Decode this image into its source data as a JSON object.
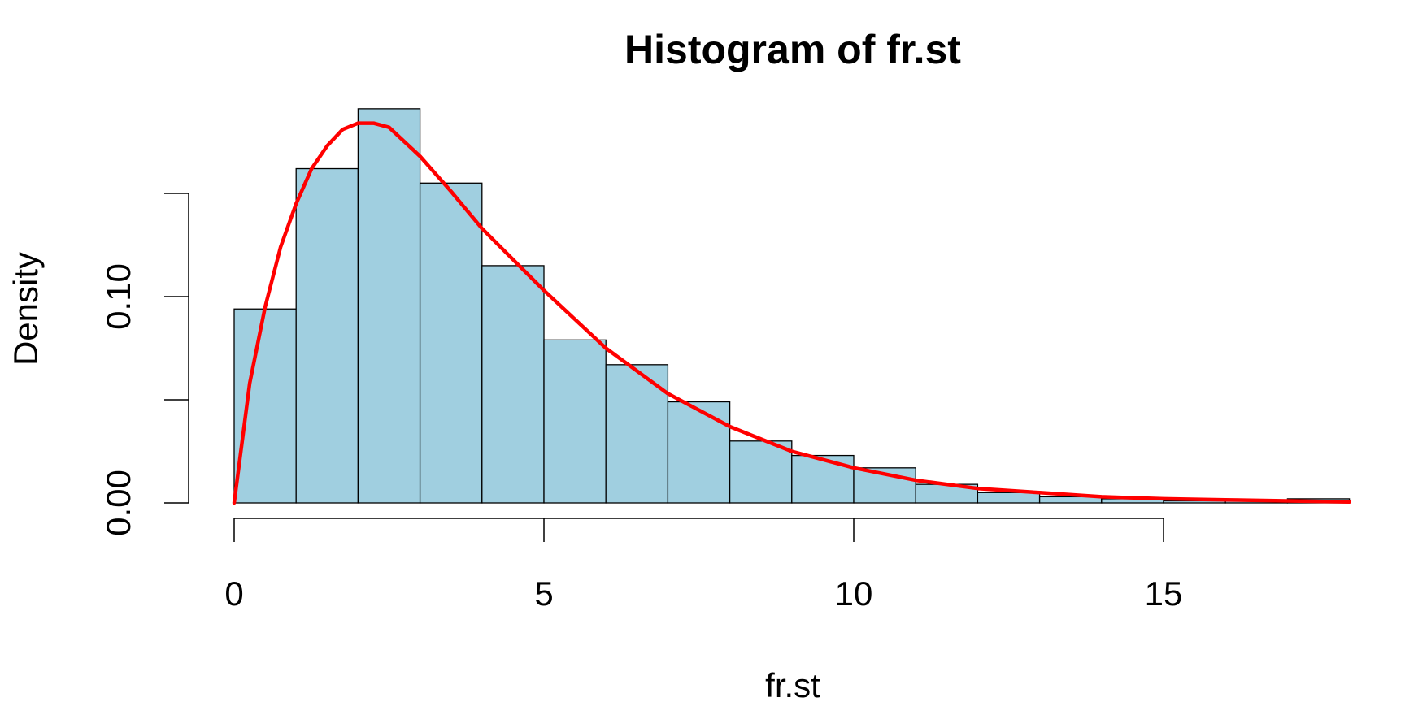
{
  "chart_data": {
    "type": "bar",
    "title": "Histogram of fr.st",
    "xlabel": "fr.st",
    "ylabel": "Density",
    "bar_color": "#a0cfe0",
    "curve_color": "#ff0000",
    "xlim": [
      0,
      18
    ],
    "ylim": [
      0,
      0.19
    ],
    "x_ticks": [
      0,
      5,
      10,
      15
    ],
    "x_tick_labels": [
      "0",
      "5",
      "10",
      "15"
    ],
    "y_ticks": [
      0,
      0.05,
      0.1,
      0.15
    ],
    "y_tick_labels": [
      "0.00",
      "",
      "0.10",
      ""
    ],
    "bins": [
      {
        "start": 0,
        "end": 1,
        "density": 0.094
      },
      {
        "start": 1,
        "end": 2,
        "density": 0.162
      },
      {
        "start": 2,
        "end": 3,
        "density": 0.191
      },
      {
        "start": 3,
        "end": 4,
        "density": 0.155
      },
      {
        "start": 4,
        "end": 5,
        "density": 0.115
      },
      {
        "start": 5,
        "end": 6,
        "density": 0.079
      },
      {
        "start": 6,
        "end": 7,
        "density": 0.067
      },
      {
        "start": 7,
        "end": 8,
        "density": 0.049
      },
      {
        "start": 8,
        "end": 9,
        "density": 0.03
      },
      {
        "start": 9,
        "end": 10,
        "density": 0.023
      },
      {
        "start": 10,
        "end": 11,
        "density": 0.017
      },
      {
        "start": 11,
        "end": 12,
        "density": 0.009
      },
      {
        "start": 12,
        "end": 13,
        "density": 0.005
      },
      {
        "start": 13,
        "end": 14,
        "density": 0.003
      },
      {
        "start": 14,
        "end": 15,
        "density": 0.002
      },
      {
        "start": 15,
        "end": 16,
        "density": 0.001
      },
      {
        "start": 16,
        "end": 17,
        "density": 0.001
      },
      {
        "start": 17,
        "end": 18,
        "density": 0.002
      }
    ],
    "density_curve": {
      "x": [
        0,
        0.25,
        0.5,
        0.75,
        1,
        1.25,
        1.5,
        1.75,
        2,
        2.25,
        2.5,
        3,
        3.5,
        4,
        5,
        6,
        7,
        8,
        9,
        10,
        11,
        12,
        13,
        14,
        15,
        16,
        17,
        18
      ],
      "y": [
        0,
        0.058,
        0.095,
        0.124,
        0.145,
        0.162,
        0.173,
        0.181,
        0.184,
        0.184,
        0.182,
        0.168,
        0.151,
        0.133,
        0.103,
        0.075,
        0.053,
        0.037,
        0.025,
        0.017,
        0.011,
        0.007,
        0.005,
        0.003,
        0.002,
        0.0015,
        0.001,
        0.0005
      ]
    }
  }
}
